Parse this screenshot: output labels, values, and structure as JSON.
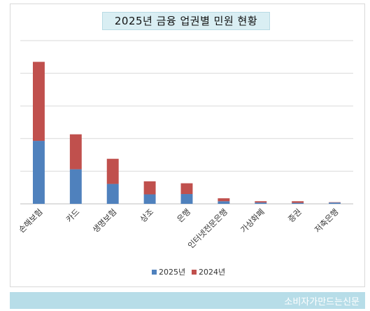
{
  "chart_data": {
    "type": "bar",
    "stacked": true,
    "title": "2025년 금융 업권별 민원 현황",
    "categories": [
      "손해보험",
      "카드",
      "생명보험",
      "상조",
      "은행",
      "인터넷전문은행",
      "가상화폐",
      "증권",
      "저축은행"
    ],
    "series": [
      {
        "name": "2025년",
        "color": "#4f81bd",
        "values": [
          1930,
          1060,
          610,
          290,
          300,
          80,
          40,
          30,
          40
        ]
      },
      {
        "name": "2024년",
        "color": "#c0504d",
        "values": [
          2420,
          1070,
          770,
          400,
          330,
          90,
          40,
          50,
          10
        ]
      }
    ],
    "ylim": [
      0,
      5000
    ],
    "grid": true,
    "legend": "bottom"
  },
  "footer": {
    "text": "소비자가만드는신문"
  }
}
